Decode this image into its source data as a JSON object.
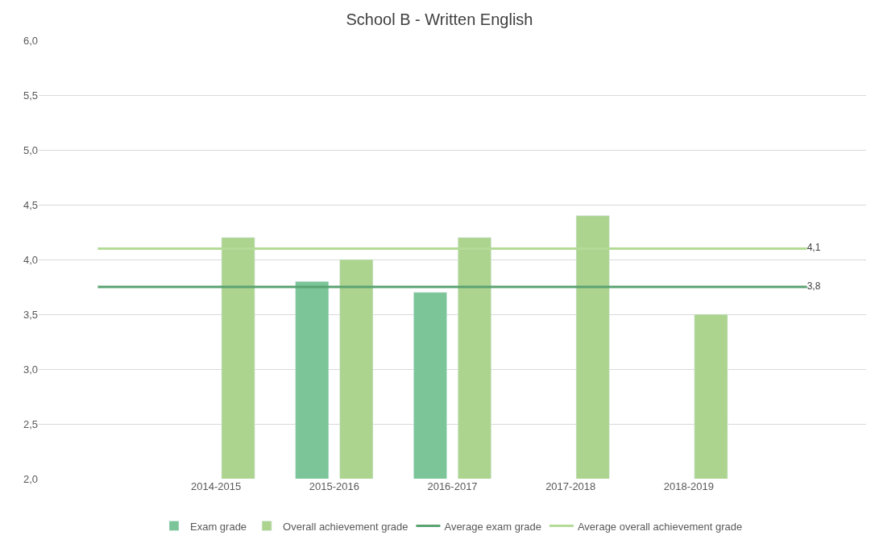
{
  "chart_data": {
    "type": "bar",
    "title": "School B - Written English",
    "categories": [
      null,
      "2014-2015",
      "2015-2016",
      "2016-2017",
      "2017-2018",
      "2018-2019",
      null
    ],
    "series": [
      {
        "name": "Exam grade",
        "color": "#7bc598",
        "values": [
          null,
          null,
          3.8,
          3.7,
          null,
          null,
          null
        ]
      },
      {
        "name": "Overall achievement grade",
        "color": "#acd48f",
        "values": [
          null,
          4.2,
          4.0,
          4.2,
          4.4,
          3.5,
          null
        ]
      },
      {
        "name": "Average exam grade",
        "type": "line",
        "color": "#5aa372",
        "values": [
          3.75,
          3.75,
          3.75,
          3.75,
          3.75,
          3.75,
          3.75
        ],
        "value_labels": [
          null,
          null,
          null,
          null,
          null,
          null,
          "3,8"
        ]
      },
      {
        "name": "Average overall achievement grade",
        "type": "line",
        "color": "#b3da96",
        "values": [
          4.1,
          4.1,
          4.1,
          4.1,
          4.1,
          4.1,
          4.1
        ],
        "value_labels": [
          null,
          null,
          null,
          null,
          null,
          null,
          "4,1"
        ]
      }
    ],
    "ylim": [
      2.0,
      6.0
    ],
    "yticks": [
      {
        "value": 2.0,
        "label": "2,0"
      },
      {
        "value": 2.5,
        "label": "2,5"
      },
      {
        "value": 3.0,
        "label": "3,0"
      },
      {
        "value": 3.5,
        "label": "3,5"
      },
      {
        "value": 4.0,
        "label": "4,0"
      },
      {
        "value": 4.5,
        "label": "4,5"
      },
      {
        "value": 5.0,
        "label": "5,0"
      },
      {
        "value": 5.5,
        "label": "5,5"
      },
      {
        "value": 6.0,
        "label": "6,0"
      }
    ],
    "grid": "y",
    "legend": "bottom",
    "marker": "none",
    "line_style": "solid"
  }
}
